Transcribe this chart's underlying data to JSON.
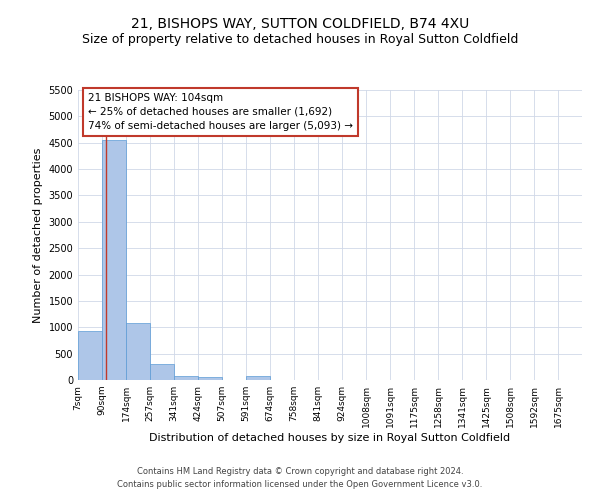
{
  "title": "21, BISHOPS WAY, SUTTON COLDFIELD, B74 4XU",
  "subtitle": "Size of property relative to detached houses in Royal Sutton Coldfield",
  "xlabel": "Distribution of detached houses by size in Royal Sutton Coldfield",
  "ylabel": "Number of detached properties",
  "footnote1": "Contains HM Land Registry data © Crown copyright and database right 2024.",
  "footnote2": "Contains public sector information licensed under the Open Government Licence v3.0.",
  "annotation_title": "21 BISHOPS WAY: 104sqm",
  "annotation_line1": "← 25% of detached houses are smaller (1,692)",
  "annotation_line2": "74% of semi-detached houses are larger (5,093) →",
  "bar_color": "#aec6e8",
  "bar_edge_color": "#5b9bd5",
  "ref_line_color": "#c0392b",
  "ref_line_x": 104,
  "categories": [
    "7sqm",
    "90sqm",
    "174sqm",
    "257sqm",
    "341sqm",
    "424sqm",
    "507sqm",
    "591sqm",
    "674sqm",
    "758sqm",
    "841sqm",
    "924sqm",
    "1008sqm",
    "1091sqm",
    "1175sqm",
    "1258sqm",
    "1341sqm",
    "1425sqm",
    "1508sqm",
    "1592sqm",
    "1675sqm"
  ],
  "bin_edges": [
    7,
    90,
    174,
    257,
    341,
    424,
    507,
    591,
    674,
    758,
    841,
    924,
    1008,
    1091,
    1175,
    1258,
    1341,
    1425,
    1508,
    1592,
    1675
  ],
  "bin_width": 83,
  "values": [
    920,
    4560,
    1075,
    295,
    80,
    65,
    0,
    80,
    0,
    0,
    0,
    0,
    0,
    0,
    0,
    0,
    0,
    0,
    0,
    0,
    0
  ],
  "ylim": [
    0,
    5500
  ],
  "yticks": [
    0,
    500,
    1000,
    1500,
    2000,
    2500,
    3000,
    3500,
    4000,
    4500,
    5000,
    5500
  ],
  "background_color": "#ffffff",
  "grid_color": "#d0d8e8",
  "title_fontsize": 10,
  "subtitle_fontsize": 9,
  "axis_label_fontsize": 8,
  "tick_fontsize": 7,
  "annotation_fontsize": 7.5,
  "footnote_fontsize": 6
}
